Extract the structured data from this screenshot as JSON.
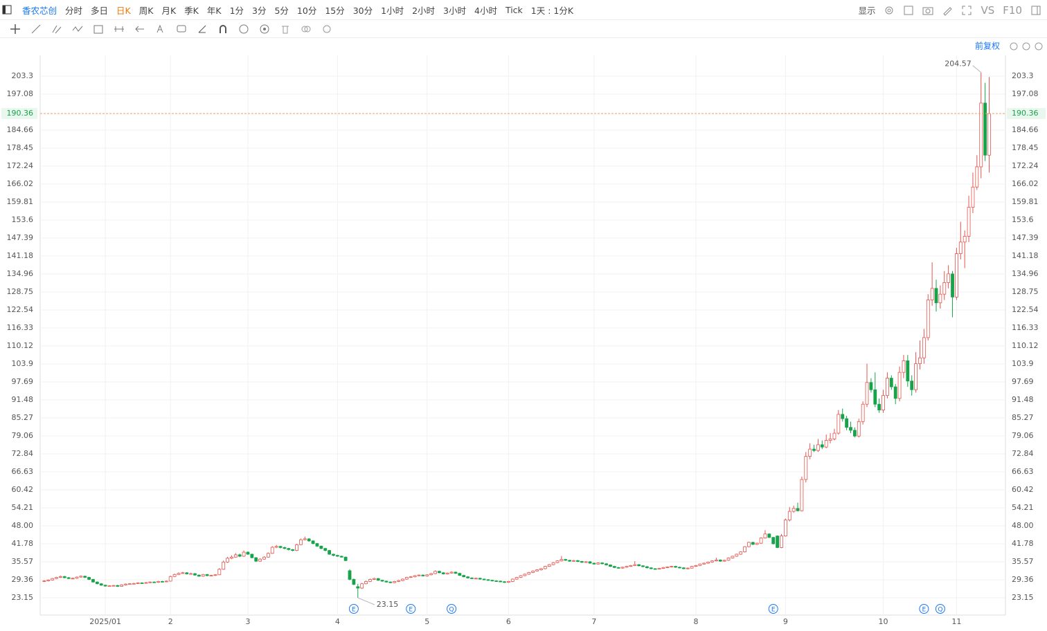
{
  "toolbar": {
    "items": [
      "香农芯创",
      "分时",
      "多日",
      "日K",
      "周K",
      "月K",
      "季K",
      "年K",
      "1分",
      "3分",
      "5分",
      "10分",
      "15分",
      "30分",
      "1小时",
      "2小时",
      "3小时",
      "4小时",
      "Tick",
      "1天 : 1分K"
    ],
    "right": [
      "显示",
      "VS",
      "F10"
    ]
  },
  "chart_data": {
    "type": "candlestick",
    "adjust_label": "前复权",
    "up_color": "#e5534b",
    "down_color": "#17a34a",
    "grid": true,
    "xlim": [
      -1,
      236
    ],
    "ylim": [
      17.18,
      210.47
    ],
    "xticks": [
      {
        "value": 15,
        "label": "2025/01"
      },
      {
        "value": 31,
        "label": "2"
      },
      {
        "value": 50,
        "label": "3"
      },
      {
        "value": 72,
        "label": "4"
      },
      {
        "value": 94,
        "label": "5"
      },
      {
        "value": 114,
        "label": "6"
      },
      {
        "value": 135,
        "label": "7"
      },
      {
        "value": 160,
        "label": "8"
      },
      {
        "value": 182,
        "label": "9"
      },
      {
        "value": 206,
        "label": "10"
      },
      {
        "value": 224,
        "label": "11"
      }
    ],
    "yticks": [
      23.15,
      29.36,
      35.57,
      41.78,
      {
        "value": 48,
        "label": "48.00"
      },
      54.21,
      60.42,
      66.63,
      72.84,
      79.06,
      85.27,
      91.48,
      97.69,
      103.9,
      110.12,
      116.33,
      122.54,
      128.75,
      134.96,
      141.18,
      147.39,
      153.6,
      159.81,
      166.02,
      172.24,
      178.45,
      184.66,
      197.08,
      203.3
    ],
    "events": [
      {
        "index": 76,
        "label": "E"
      },
      {
        "index": 90,
        "label": "E"
      },
      {
        "index": 100,
        "label": "Q"
      },
      {
        "index": 179,
        "label": "E"
      },
      {
        "index": 216,
        "label": "E"
      },
      {
        "index": 220,
        "label": "Q"
      }
    ],
    "candles": [
      [
        28.8,
        29.2,
        28.6,
        29.0
      ],
      [
        29.0,
        29.5,
        28.8,
        29.3
      ],
      [
        29.3,
        30.0,
        29.1,
        29.8
      ],
      [
        29.8,
        30.4,
        29.6,
        30.2
      ],
      [
        30.2,
        30.8,
        30.0,
        30.5
      ],
      [
        30.5,
        30.7,
        29.9,
        30.1
      ],
      [
        30.1,
        30.3,
        29.6,
        29.8
      ],
      [
        29.8,
        30.1,
        29.6,
        29.9
      ],
      [
        29.9,
        30.5,
        29.7,
        30.3
      ],
      [
        30.3,
        30.9,
        30.1,
        30.6
      ],
      [
        30.6,
        30.8,
        30.0,
        30.2
      ],
      [
        30.2,
        30.4,
        29.3,
        29.5
      ],
      [
        29.5,
        29.7,
        28.4,
        28.6
      ],
      [
        28.6,
        28.8,
        27.8,
        28.0
      ],
      [
        28.0,
        28.2,
        27.3,
        27.5
      ],
      [
        27.5,
        27.7,
        27.0,
        27.2
      ],
      [
        27.2,
        27.5,
        27.0,
        27.3
      ],
      [
        27.3,
        27.6,
        27.1,
        27.4
      ],
      [
        27.4,
        27.6,
        26.9,
        27.1
      ],
      [
        27.1,
        27.8,
        27.0,
        27.6
      ],
      [
        27.6,
        28.1,
        27.4,
        27.9
      ],
      [
        27.9,
        28.2,
        27.7,
        28.0
      ],
      [
        28.0,
        28.3,
        27.8,
        28.1
      ],
      [
        28.1,
        28.5,
        27.9,
        28.3
      ],
      [
        28.3,
        28.5,
        28.0,
        28.2
      ],
      [
        28.2,
        28.6,
        28.0,
        28.4
      ],
      [
        28.4,
        28.8,
        28.2,
        28.6
      ],
      [
        28.6,
        28.8,
        28.3,
        28.5
      ],
      [
        28.5,
        29.0,
        28.3,
        28.8
      ],
      [
        28.8,
        29.0,
        28.5,
        28.7
      ],
      [
        28.7,
        29.1,
        28.5,
        28.9
      ],
      [
        28.9,
        30.8,
        28.8,
        30.5
      ],
      [
        30.5,
        31.5,
        30.3,
        31.2
      ],
      [
        31.2,
        31.9,
        31.0,
        31.6
      ],
      [
        31.6,
        32.1,
        31.4,
        31.8
      ],
      [
        31.8,
        32.0,
        31.2,
        31.4
      ],
      [
        31.4,
        31.8,
        31.2,
        31.5
      ],
      [
        31.5,
        31.7,
        30.8,
        31.0
      ],
      [
        31.0,
        31.2,
        30.4,
        30.6
      ],
      [
        30.6,
        31.4,
        30.4,
        31.2
      ],
      [
        31.2,
        31.4,
        30.6,
        30.8
      ],
      [
        30.8,
        31.1,
        30.6,
        30.9
      ],
      [
        30.9,
        31.3,
        30.7,
        31.1
      ],
      [
        31.1,
        33.4,
        31.0,
        33.0
      ],
      [
        33.0,
        36.0,
        32.8,
        35.5
      ],
      [
        35.5,
        37.3,
        35.2,
        36.8
      ],
      [
        36.8,
        37.8,
        36.5,
        37.2
      ],
      [
        37.2,
        38.6,
        37.0,
        38.0
      ],
      [
        38.0,
        38.4,
        37.2,
        37.5
      ],
      [
        37.5,
        39.5,
        37.3,
        38.9
      ],
      [
        38.9,
        39.2,
        38.0,
        38.2
      ],
      [
        38.2,
        38.4,
        36.8,
        37.0
      ],
      [
        37.0,
        37.2,
        35.5,
        35.8
      ],
      [
        35.8,
        36.8,
        35.6,
        36.5
      ],
      [
        36.5,
        37.5,
        36.3,
        37.2
      ],
      [
        37.2,
        38.8,
        37.0,
        38.5
      ],
      [
        38.5,
        41.0,
        38.3,
        40.6
      ],
      [
        40.6,
        41.4,
        40.3,
        40.9
      ],
      [
        40.9,
        41.1,
        40.2,
        40.5
      ],
      [
        40.5,
        40.8,
        39.9,
        40.2
      ],
      [
        40.2,
        40.4,
        39.5,
        39.8
      ],
      [
        39.8,
        40.0,
        39.2,
        39.5
      ],
      [
        39.5,
        41.8,
        39.3,
        41.5
      ],
      [
        41.5,
        43.6,
        41.3,
        43.2
      ],
      [
        43.2,
        44.3,
        43.0,
        43.5
      ],
      [
        43.5,
        43.7,
        42.5,
        42.8
      ],
      [
        42.8,
        43.0,
        41.6,
        41.9
      ],
      [
        41.9,
        42.1,
        40.7,
        41.0
      ],
      [
        41.0,
        41.2,
        39.9,
        40.2
      ],
      [
        40.2,
        40.4,
        39.2,
        39.5
      ],
      [
        39.5,
        39.7,
        38.0,
        38.2
      ],
      [
        38.2,
        38.4,
        37.5,
        37.8
      ],
      [
        37.8,
        38.0,
        37.3,
        37.5
      ],
      [
        37.5,
        37.7,
        37.0,
        37.2
      ],
      [
        37.2,
        37.4,
        35.8,
        36.0
      ],
      [
        32.5,
        33.0,
        29.2,
        29.5
      ],
      [
        29.5,
        29.8,
        27.5,
        27.8
      ],
      [
        27.0,
        28.0,
        23.15,
        26.5
      ],
      [
        26.5,
        28.3,
        26.2,
        28.0
      ],
      [
        28.0,
        29.1,
        27.8,
        28.8
      ],
      [
        28.8,
        29.8,
        28.6,
        29.5
      ],
      [
        29.5,
        30.1,
        29.3,
        29.8
      ],
      [
        29.8,
        30.0,
        29.0,
        29.2
      ],
      [
        29.2,
        29.4,
        28.7,
        28.9
      ],
      [
        28.9,
        29.1,
        28.4,
        28.6
      ],
      [
        28.6,
        28.8,
        28.2,
        28.4
      ],
      [
        28.4,
        29.0,
        28.2,
        28.8
      ],
      [
        28.8,
        29.3,
        28.6,
        29.1
      ],
      [
        29.1,
        29.8,
        28.9,
        29.6
      ],
      [
        29.6,
        30.4,
        29.4,
        30.2
      ],
      [
        30.2,
        30.6,
        30.0,
        30.4
      ],
      [
        30.4,
        31.0,
        30.2,
        30.8
      ],
      [
        30.8,
        31.2,
        30.6,
        31.0
      ],
      [
        31.0,
        31.2,
        30.5,
        30.7
      ],
      [
        30.7,
        31.3,
        30.5,
        31.1
      ],
      [
        31.1,
        31.7,
        30.9,
        31.5
      ],
      [
        31.5,
        32.6,
        31.3,
        32.3
      ],
      [
        32.3,
        32.5,
        31.6,
        31.8
      ],
      [
        31.8,
        32.0,
        31.2,
        31.4
      ],
      [
        31.4,
        31.9,
        31.2,
        31.7
      ],
      [
        31.7,
        32.3,
        31.5,
        32.0
      ],
      [
        32.0,
        32.2,
        31.4,
        31.6
      ],
      [
        31.6,
        31.8,
        30.7,
        30.9
      ],
      [
        30.9,
        31.1,
        30.2,
        30.4
      ],
      [
        30.4,
        30.6,
        29.8,
        30.0
      ],
      [
        30.0,
        30.2,
        29.6,
        29.8
      ],
      [
        29.8,
        30.1,
        29.6,
        29.9
      ],
      [
        29.9,
        30.1,
        29.4,
        29.6
      ],
      [
        29.6,
        29.8,
        29.2,
        29.4
      ],
      [
        29.4,
        29.6,
        29.0,
        29.2
      ],
      [
        29.2,
        29.4,
        28.8,
        29.0
      ],
      [
        29.0,
        29.2,
        28.7,
        28.9
      ],
      [
        28.9,
        29.1,
        28.5,
        28.7
      ],
      [
        28.7,
        28.9,
        28.3,
        28.5
      ],
      [
        28.5,
        29.0,
        28.3,
        28.8
      ],
      [
        28.8,
        29.8,
        28.6,
        29.6
      ],
      [
        29.6,
        30.4,
        29.4,
        30.2
      ],
      [
        30.2,
        31.0,
        30.0,
        30.8
      ],
      [
        30.8,
        31.5,
        30.6,
        31.3
      ],
      [
        31.3,
        32.1,
        31.1,
        31.9
      ],
      [
        31.9,
        32.6,
        31.7,
        32.4
      ],
      [
        32.4,
        33.0,
        32.2,
        32.8
      ],
      [
        32.8,
        33.4,
        32.6,
        33.2
      ],
      [
        33.2,
        34.2,
        33.0,
        34.0
      ],
      [
        34.0,
        34.8,
        33.8,
        34.6
      ],
      [
        34.6,
        35.5,
        34.4,
        35.3
      ],
      [
        35.3,
        36.1,
        35.1,
        35.9
      ],
      [
        35.9,
        37.6,
        35.7,
        36.4
      ],
      [
        36.4,
        36.6,
        35.9,
        36.1
      ],
      [
        36.1,
        36.3,
        35.6,
        35.8
      ],
      [
        35.8,
        36.2,
        35.6,
        36.0
      ],
      [
        36.0,
        36.2,
        35.5,
        35.7
      ],
      [
        35.7,
        35.9,
        35.2,
        35.4
      ],
      [
        35.4,
        35.8,
        35.2,
        35.6
      ],
      [
        35.6,
        35.8,
        34.9,
        35.1
      ],
      [
        35.1,
        35.3,
        34.6,
        34.8
      ],
      [
        34.8,
        35.4,
        34.6,
        35.2
      ],
      [
        35.2,
        35.4,
        34.7,
        34.9
      ],
      [
        34.9,
        35.1,
        34.3,
        34.5
      ],
      [
        34.5,
        34.7,
        33.8,
        34.0
      ],
      [
        34.0,
        34.2,
        33.4,
        33.6
      ],
      [
        33.6,
        33.8,
        33.2,
        33.4
      ],
      [
        33.4,
        33.9,
        33.2,
        33.7
      ],
      [
        33.7,
        34.2,
        33.5,
        34.0
      ],
      [
        34.0,
        34.5,
        33.8,
        34.3
      ],
      [
        34.3,
        35.8,
        34.1,
        34.6
      ],
      [
        34.6,
        34.8,
        34.0,
        34.2
      ],
      [
        34.2,
        34.4,
        33.7,
        33.9
      ],
      [
        33.9,
        34.1,
        33.3,
        33.5
      ],
      [
        33.5,
        33.7,
        33.0,
        33.2
      ],
      [
        33.2,
        33.4,
        32.9,
        33.1
      ],
      [
        33.1,
        33.5,
        32.9,
        33.3
      ],
      [
        33.3,
        33.8,
        33.1,
        33.6
      ],
      [
        33.6,
        34.0,
        33.4,
        33.8
      ],
      [
        33.8,
        34.2,
        33.6,
        34.0
      ],
      [
        34.0,
        34.2,
        33.5,
        33.7
      ],
      [
        33.7,
        33.9,
        33.3,
        33.5
      ],
      [
        33.5,
        33.7,
        33.0,
        33.2
      ],
      [
        33.2,
        33.6,
        33.0,
        33.4
      ],
      [
        33.4,
        34.2,
        33.2,
        34.0
      ],
      [
        34.0,
        34.5,
        33.8,
        34.3
      ],
      [
        34.3,
        35.0,
        34.1,
        34.8
      ],
      [
        34.8,
        35.3,
        34.6,
        35.1
      ],
      [
        35.1,
        35.7,
        34.9,
        35.5
      ],
      [
        35.5,
        36.1,
        35.3,
        35.9
      ],
      [
        35.9,
        37.0,
        35.7,
        36.2
      ],
      [
        36.2,
        36.4,
        35.6,
        35.8
      ],
      [
        35.8,
        36.3,
        35.6,
        36.1
      ],
      [
        36.1,
        37.1,
        35.9,
        36.9
      ],
      [
        36.9,
        37.7,
        36.7,
        37.5
      ],
      [
        37.5,
        38.4,
        37.3,
        38.2
      ],
      [
        38.2,
        39.2,
        38.0,
        39.0
      ],
      [
        39.0,
        41.0,
        38.8,
        40.8
      ],
      [
        40.8,
        42.5,
        40.6,
        42.3
      ],
      [
        42.3,
        42.5,
        41.4,
        41.6
      ],
      [
        41.6,
        42.2,
        41.4,
        42.0
      ],
      [
        42.0,
        44.0,
        41.8,
        43.8
      ],
      [
        43.8,
        46.5,
        43.6,
        45.2
      ],
      [
        45.2,
        45.4,
        43.8,
        44.0
      ],
      [
        44.0,
        44.2,
        41.6,
        41.8
      ],
      [
        44.5,
        44.7,
        40.3,
        40.5
      ],
      [
        40.5,
        45.2,
        40.3,
        44.5
      ],
      [
        44.5,
        50.5,
        44.3,
        50.0
      ],
      [
        50.0,
        54.5,
        49.5,
        53.0
      ],
      [
        53.0,
        55.0,
        52.5,
        54.0
      ],
      [
        54.0,
        56.0,
        53.0,
        53.2
      ],
      [
        53.2,
        65.0,
        53.0,
        64.0
      ],
      [
        64.0,
        73.5,
        63.0,
        72.0
      ],
      [
        72.0,
        76.5,
        71.0,
        74.5
      ],
      [
        74.5,
        76.0,
        73.5,
        74.0
      ],
      [
        74.0,
        78.0,
        73.5,
        76.0
      ],
      [
        76.0,
        77.5,
        74.5,
        75.2
      ],
      [
        75.2,
        79.5,
        74.8,
        77.5
      ],
      [
        77.5,
        80.0,
        76.5,
        78.0
      ],
      [
        78.0,
        81.5,
        77.5,
        80.0
      ],
      [
        80.0,
        88.0,
        79.5,
        86.5
      ],
      [
        86.5,
        88.5,
        84.0,
        85.0
      ],
      [
        85.0,
        86.0,
        81.0,
        82.0
      ],
      [
        82.0,
        84.0,
        80.0,
        81.0
      ],
      [
        81.0,
        82.0,
        78.5,
        79.0
      ],
      [
        79.0,
        85.0,
        78.5,
        84.0
      ],
      [
        84.0,
        91.0,
        83.0,
        90.0
      ],
      [
        90.0,
        104.0,
        89.0,
        97.5
      ],
      [
        97.5,
        99.0,
        94.0,
        95.0
      ],
      [
        95.0,
        101.0,
        89.0,
        90.0
      ],
      [
        90.0,
        92.0,
        87.0,
        88.0
      ],
      [
        88.0,
        95.0,
        87.0,
        93.0
      ],
      [
        93.0,
        101.0,
        92.0,
        99.0
      ],
      [
        99.0,
        100.0,
        95.0,
        96.0
      ],
      [
        96.0,
        97.0,
        90.0,
        92.0
      ],
      [
        92.0,
        103.0,
        91.0,
        101.0
      ],
      [
        101.0,
        107.0,
        99.0,
        105.0
      ],
      [
        105.0,
        107.0,
        96.0,
        98.0
      ],
      [
        98.0,
        100.0,
        93.0,
        95.0
      ],
      [
        95.0,
        108.0,
        94.0,
        104.0
      ],
      [
        104.0,
        112.0,
        102.0,
        106.0
      ],
      [
        106.0,
        116.0,
        104.0,
        113.0
      ],
      [
        113.0,
        128.0,
        112.0,
        126.0
      ],
      [
        126.0,
        139.0,
        124.0,
        130.0
      ],
      [
        130.0,
        133.0,
        122.0,
        125.0
      ],
      [
        125.0,
        131.0,
        123.0,
        128.0
      ],
      [
        128.0,
        136.0,
        126.0,
        132.0
      ],
      [
        132.0,
        138.0,
        130.0,
        135.0
      ],
      [
        135.0,
        136.0,
        120.0,
        127.0
      ],
      [
        127.0,
        144.0,
        126.0,
        142.0
      ],
      [
        142.0,
        153.0,
        140.0,
        146.0
      ],
      [
        146.0,
        150.0,
        137.0,
        148.0
      ],
      [
        148.0,
        162.0,
        146.0,
        158.0
      ],
      [
        158.0,
        170.0,
        156.0,
        165.0
      ],
      [
        165.0,
        176.0,
        164.0,
        172.0
      ],
      [
        172.0,
        204.57,
        168.0,
        194.0
      ],
      [
        194.0,
        201.0,
        174.0,
        176.0
      ],
      [
        176.0,
        203.0,
        170.0,
        190.36
      ]
    ]
  }
}
